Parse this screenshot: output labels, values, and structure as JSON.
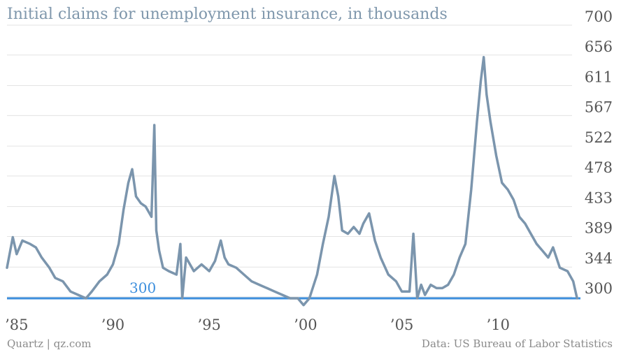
{
  "title": "Initial claims for unemployment insurance, in thousands",
  "source_left": "Quartz | qz.com",
  "source_right": "Data: US Bureau of Labor Statistics",
  "colors": {
    "series": "#7b95ad",
    "reference": "#3d8fdd",
    "grid": "#e3e3e3",
    "title": "#7f97ac"
  },
  "chart_data": {
    "type": "line",
    "title": "Initial claims for unemployment insurance, in thousands",
    "xlabel": "",
    "ylabel": "",
    "ylim": [
      290,
      700
    ],
    "xlim": [
      1984.5,
      2014.2
    ],
    "grid": true,
    "y_ticks": [
      700,
      656,
      611,
      567,
      522,
      478,
      433,
      389,
      344,
      300
    ],
    "x_ticks": [
      {
        "value": 1985,
        "label": "’85"
      },
      {
        "value": 1990,
        "label": "’90"
      },
      {
        "value": 1995,
        "label": "’95"
      },
      {
        "value": 2000,
        "label": "’00"
      },
      {
        "value": 2005,
        "label": "’05"
      },
      {
        "value": 2010,
        "label": "’10"
      }
    ],
    "reference_line": {
      "value": 300,
      "label": "300"
    },
    "series": [
      {
        "x": [
          1984.5,
          1984.8,
          1985.0,
          1985.3,
          1985.7,
          1986.0,
          1986.3,
          1986.7,
          1987.0,
          1987.4,
          1987.8,
          1988.2,
          1988.6,
          1988.9,
          1989.3,
          1989.7,
          1990.0,
          1990.3,
          1990.55,
          1990.8,
          1991.0,
          1991.2,
          1991.45,
          1991.7,
          1992.0,
          1992.15,
          1992.25,
          1992.4,
          1992.6,
          1992.9,
          1993.3,
          1993.5,
          1993.6,
          1993.8,
          1994.2,
          1994.6,
          1995.0,
          1995.3,
          1995.6,
          1995.8,
          1996.0,
          1996.4,
          1996.8,
          1997.2,
          1997.6,
          1998.0,
          1998.4,
          1998.8,
          1999.2,
          1999.6,
          1999.9,
          2000.2,
          2000.6,
          2000.9,
          2001.2,
          2001.5,
          2001.7,
          2001.9,
          2002.2,
          2002.5,
          2002.8,
          2003.0,
          2003.3,
          2003.6,
          2003.9,
          2004.3,
          2004.7,
          2005.0,
          2005.4,
          2005.6,
          2005.8,
          2006.0,
          2006.2,
          2006.5,
          2006.8,
          2007.1,
          2007.4,
          2007.7,
          2008.0,
          2008.3,
          2008.6,
          2008.9,
          2009.1,
          2009.25,
          2009.4,
          2009.6,
          2009.9,
          2010.2,
          2010.5,
          2010.8,
          2011.1,
          2011.4,
          2011.7,
          2012.0,
          2012.3,
          2012.6,
          2012.85,
          2013.2,
          2013.6,
          2013.9,
          2014.1
        ],
        "y": [
          345,
          390,
          365,
          385,
          380,
          375,
          360,
          345,
          330,
          325,
          310,
          305,
          300,
          310,
          325,
          335,
          350,
          380,
          430,
          470,
          490,
          450,
          440,
          435,
          420,
          555,
          400,
          370,
          345,
          340,
          335,
          380,
          300,
          360,
          340,
          350,
          340,
          355,
          385,
          360,
          350,
          345,
          335,
          325,
          320,
          315,
          310,
          305,
          300,
          300,
          290,
          300,
          335,
          380,
          420,
          480,
          450,
          400,
          395,
          405,
          395,
          410,
          425,
          385,
          360,
          335,
          325,
          310,
          310,
          395,
          300,
          320,
          305,
          320,
          315,
          315,
          320,
          335,
          360,
          380,
          460,
          560,
          620,
          655,
          600,
          560,
          510,
          470,
          460,
          445,
          420,
          410,
          395,
          380,
          370,
          360,
          375,
          345,
          340,
          325,
          300
        ]
      }
    ]
  }
}
